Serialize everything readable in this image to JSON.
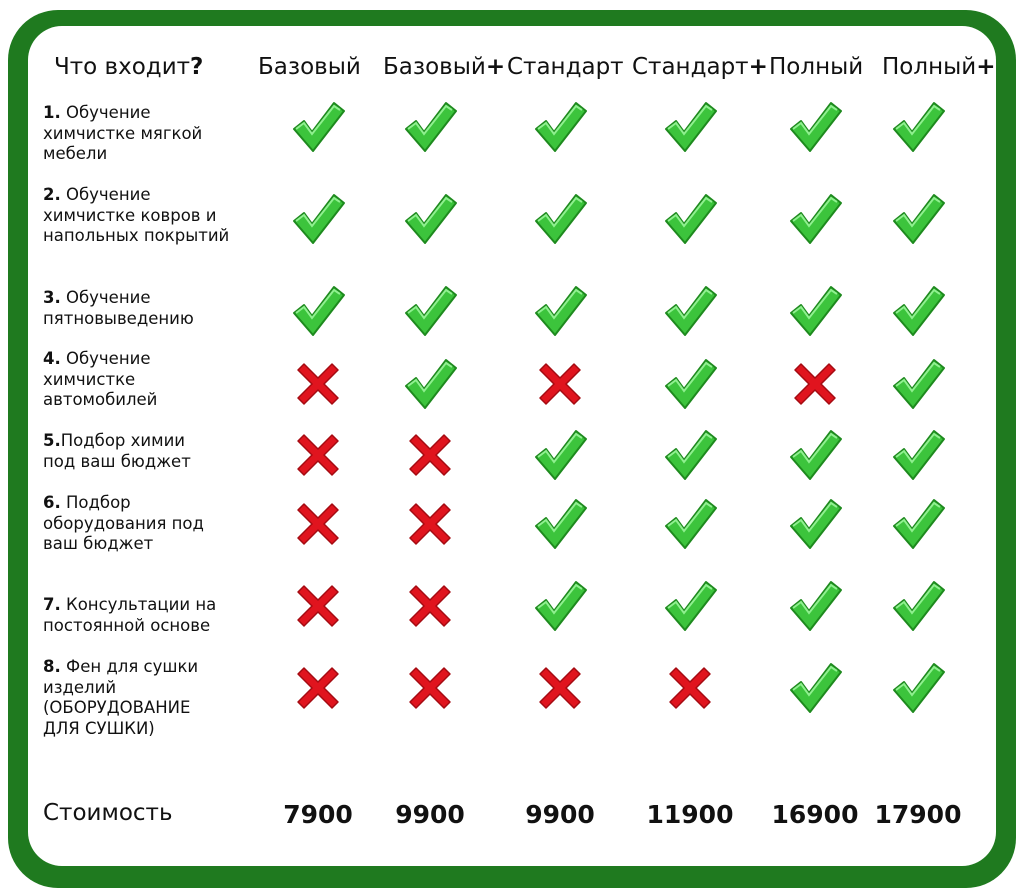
{
  "header": {
    "title_text": "Что входит",
    "title_q": "?",
    "plans": [
      {
        "name": "Базовый",
        "plus": ""
      },
      {
        "name": "Базовый",
        "plus": "+"
      },
      {
        "name": "Стандарт",
        "plus": ""
      },
      {
        "name": "Стандарт",
        "plus": "+"
      },
      {
        "name": "Полный",
        "plus": ""
      },
      {
        "name": "Полный",
        "plus": "+"
      }
    ]
  },
  "rows": [
    {
      "num": "1.",
      "text": " Обучение химчистке мягкой мебели",
      "extra": "",
      "marks": [
        true,
        true,
        true,
        true,
        true,
        true
      ]
    },
    {
      "num": "2.",
      "text": " Обучение химчистке ковров и напольных покрытий",
      "extra": "",
      "marks": [
        true,
        true,
        true,
        true,
        true,
        true
      ]
    },
    {
      "num": "3.",
      "text": " Обучение пятновыведению",
      "extra": "",
      "marks": [
        true,
        true,
        true,
        true,
        true,
        true
      ]
    },
    {
      "num": "4.",
      "text": " Обучение химчистке автомобилей",
      "extra": "",
      "marks": [
        false,
        true,
        false,
        true,
        false,
        true
      ]
    },
    {
      "num": "5.",
      "text": "Подбор химии под ваш бюджет",
      "extra": "",
      "marks": [
        false,
        false,
        true,
        true,
        true,
        true
      ]
    },
    {
      "num": "6.",
      "text": " Подбор оборудования под ваш бюджет",
      "extra": "",
      "marks": [
        false,
        false,
        true,
        true,
        true,
        true
      ]
    },
    {
      "num": "7.",
      "text": " Консультации на постоянной основе",
      "extra": "",
      "marks": [
        false,
        false,
        true,
        true,
        true,
        true
      ]
    },
    {
      "num": "8.",
      "text": " Фен для сушки изделий ",
      "extra": "(ОБОРУДОВАНИЕ ДЛЯ СУШКИ)",
      "marks": [
        false,
        false,
        false,
        false,
        true,
        true
      ]
    }
  ],
  "cost": {
    "label": "Стоимость",
    "prices": [
      "7900",
      "9900",
      "9900",
      "11900",
      "16900",
      "17900"
    ]
  },
  "colors": {
    "frame": "#1f7a1f",
    "check": "#3cc43c",
    "cross": "#e0141e"
  },
  "icons": {
    "included": "check-icon",
    "excluded": "cross-icon"
  }
}
